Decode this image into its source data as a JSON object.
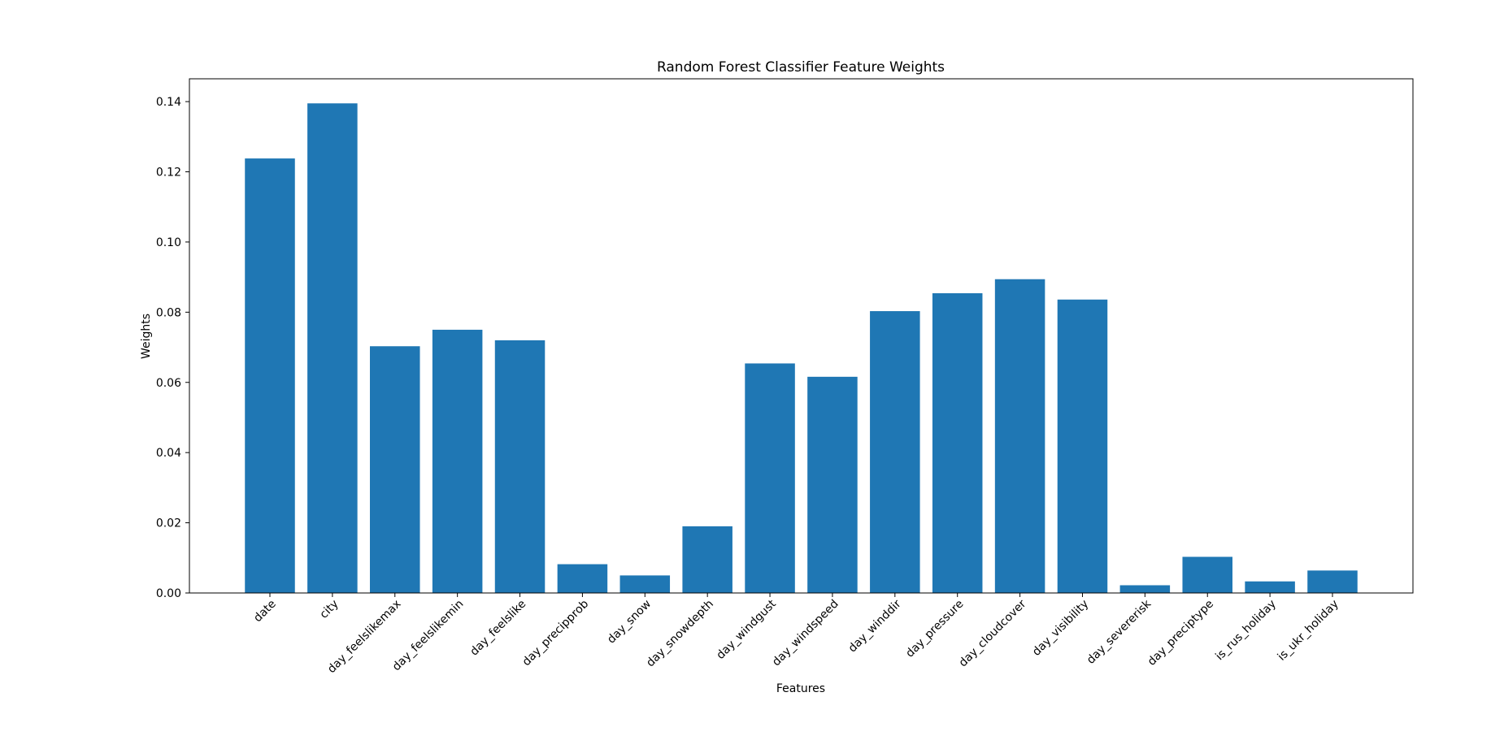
{
  "chart_data": {
    "type": "bar",
    "title": "Random Forest Classifier Feature Weights",
    "xlabel": "Features",
    "ylabel": "Weights",
    "categories": [
      "date",
      "city",
      "day_feelslikemax",
      "day_feelslikemin",
      "day_feelslike",
      "day_precipprob",
      "day_snow",
      "day_snowdepth",
      "day_windgust",
      "day_windspeed",
      "day_winddir",
      "day_pressure",
      "day_cloudcover",
      "day_visibility",
      "day_severerisk",
      "day_preciptype",
      "is_rus_holiday",
      "is_ukr_holiday"
    ],
    "values": [
      0.1238,
      0.1395,
      0.0703,
      0.075,
      0.072,
      0.0082,
      0.005,
      0.019,
      0.0654,
      0.0616,
      0.0803,
      0.0854,
      0.0894,
      0.0836,
      0.0022,
      0.0103,
      0.0033,
      0.0064
    ],
    "ylim": [
      0,
      0.1465
    ],
    "yticks": [
      "0.00",
      "0.02",
      "0.04",
      "0.06",
      "0.08",
      "0.10",
      "0.12",
      "0.14"
    ],
    "bar_color": "#1f77b4",
    "grid": false
  }
}
